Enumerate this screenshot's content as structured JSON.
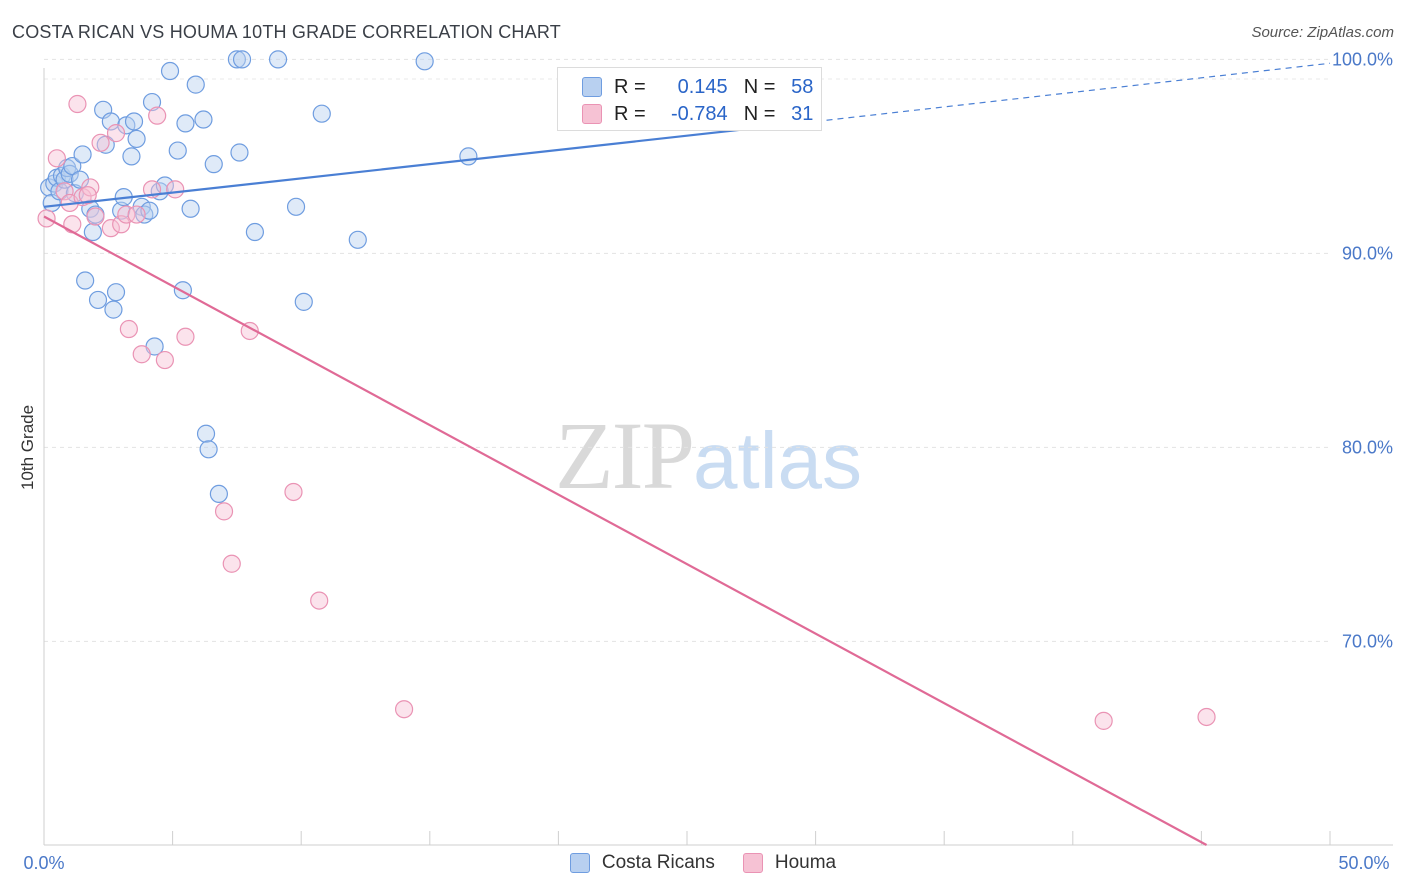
{
  "title": "COSTA RICAN VS HOUMA 10TH GRADE CORRELATION CHART",
  "source": "Source: ZipAtlas.com",
  "watermark": {
    "zip": "ZIP",
    "atlas": "atlas"
  },
  "colors": {
    "blue": "#4a7fd4",
    "blue_fill": "#b8d0f0",
    "pink": "#e06a96",
    "pink_fill": "#f6c2d4",
    "tick": "#4a78c8"
  },
  "legend": {
    "rows": [
      {
        "r_label": "R =",
        "r_value": " 0.145",
        "n_label": "N =",
        "n_value": "58"
      },
      {
        "r_label": "R =",
        "r_value": "-0.784",
        "n_label": "N =",
        "n_value": "31"
      }
    ]
  },
  "bottom_legend": {
    "blue_label": "Costa Ricans",
    "pink_label": "Houma"
  },
  "chart_data": {
    "type": "scatter",
    "title": "COSTA RICAN VS HOUMA 10TH GRADE CORRELATION CHART",
    "xlabel": "",
    "ylabel": "10th Grade",
    "xlim": [
      0,
      50
    ],
    "ylim": [
      59.5,
      101.0
    ],
    "x_ticks": [
      "0.0%",
      "50.0%"
    ],
    "y_ticks": [
      {
        "value": 100,
        "label": "100.0%"
      },
      {
        "value": 90,
        "label": "90.0%"
      },
      {
        "value": 80,
        "label": "80.0%"
      },
      {
        "value": 70,
        "label": "70.0%"
      }
    ],
    "series": [
      {
        "name": "Costa Ricans",
        "color": "#4a7fd4",
        "points": [
          [
            0.2,
            93.4
          ],
          [
            0.3,
            92.6
          ],
          [
            0.4,
            93.6
          ],
          [
            0.5,
            93.9
          ],
          [
            0.6,
            93.2
          ],
          [
            0.7,
            94.0
          ],
          [
            0.8,
            93.8
          ],
          [
            0.9,
            94.4
          ],
          [
            1.0,
            94.1
          ],
          [
            1.1,
            94.5
          ],
          [
            1.2,
            93.1
          ],
          [
            1.4,
            93.8
          ],
          [
            1.5,
            95.1
          ],
          [
            1.6,
            88.6
          ],
          [
            1.8,
            92.3
          ],
          [
            1.9,
            91.1
          ],
          [
            2.0,
            92.0
          ],
          [
            2.1,
            87.6
          ],
          [
            2.3,
            97.4
          ],
          [
            2.4,
            95.6
          ],
          [
            2.6,
            96.8
          ],
          [
            2.7,
            87.1
          ],
          [
            2.8,
            88.0
          ],
          [
            3.0,
            92.2
          ],
          [
            3.1,
            92.9
          ],
          [
            3.2,
            96.6
          ],
          [
            3.4,
            95.0
          ],
          [
            3.5,
            96.8
          ],
          [
            3.6,
            95.9
          ],
          [
            3.8,
            92.4
          ],
          [
            3.9,
            92.0
          ],
          [
            4.1,
            92.2
          ],
          [
            4.2,
            97.8
          ],
          [
            4.3,
            85.2
          ],
          [
            4.5,
            93.2
          ],
          [
            4.7,
            93.5
          ],
          [
            4.9,
            99.4
          ],
          [
            5.2,
            95.3
          ],
          [
            5.4,
            88.1
          ],
          [
            5.5,
            96.7
          ],
          [
            5.7,
            92.3
          ],
          [
            5.9,
            98.7
          ],
          [
            6.2,
            96.9
          ],
          [
            6.3,
            80.7
          ],
          [
            6.4,
            79.9
          ],
          [
            6.6,
            94.6
          ],
          [
            6.8,
            77.6
          ],
          [
            7.5,
            100.0
          ],
          [
            7.6,
            95.2
          ],
          [
            7.7,
            100.0
          ],
          [
            8.2,
            91.1
          ],
          [
            9.1,
            100.0
          ],
          [
            9.8,
            92.4
          ],
          [
            10.1,
            87.5
          ],
          [
            10.8,
            97.2
          ],
          [
            12.2,
            90.7
          ],
          [
            14.8,
            99.9
          ],
          [
            16.5,
            95.0
          ]
        ],
        "trend": {
          "x": [
            0,
            30
          ],
          "y": [
            92.4,
            96.8
          ],
          "dashed_to": {
            "x": 50,
            "y": 99.8
          }
        }
      },
      {
        "name": "Houma",
        "color": "#e06a96",
        "points": [
          [
            0.1,
            91.8
          ],
          [
            0.5,
            94.9
          ],
          [
            0.8,
            93.2
          ],
          [
            1.0,
            92.6
          ],
          [
            1.1,
            91.5
          ],
          [
            1.3,
            97.7
          ],
          [
            1.5,
            92.9
          ],
          [
            1.8,
            93.4
          ],
          [
            2.0,
            91.9
          ],
          [
            2.2,
            95.7
          ],
          [
            2.6,
            91.3
          ],
          [
            2.8,
            96.2
          ],
          [
            3.0,
            91.5
          ],
          [
            3.2,
            92.0
          ],
          [
            3.3,
            86.1
          ],
          [
            3.6,
            92.0
          ],
          [
            3.8,
            84.8
          ],
          [
            4.2,
            93.3
          ],
          [
            4.4,
            97.1
          ],
          [
            4.7,
            84.5
          ],
          [
            5.1,
            93.3
          ],
          [
            5.5,
            85.7
          ],
          [
            7.0,
            76.7
          ],
          [
            7.3,
            74.0
          ],
          [
            8.0,
            86.0
          ],
          [
            9.7,
            77.7
          ],
          [
            10.7,
            72.1
          ],
          [
            14.0,
            66.5
          ],
          [
            41.2,
            65.9
          ],
          [
            45.2,
            66.1
          ],
          [
            1.7,
            93.0
          ]
        ],
        "trend": {
          "x": [
            0,
            45.2
          ],
          "y": [
            91.9,
            59.5
          ]
        }
      }
    ]
  }
}
